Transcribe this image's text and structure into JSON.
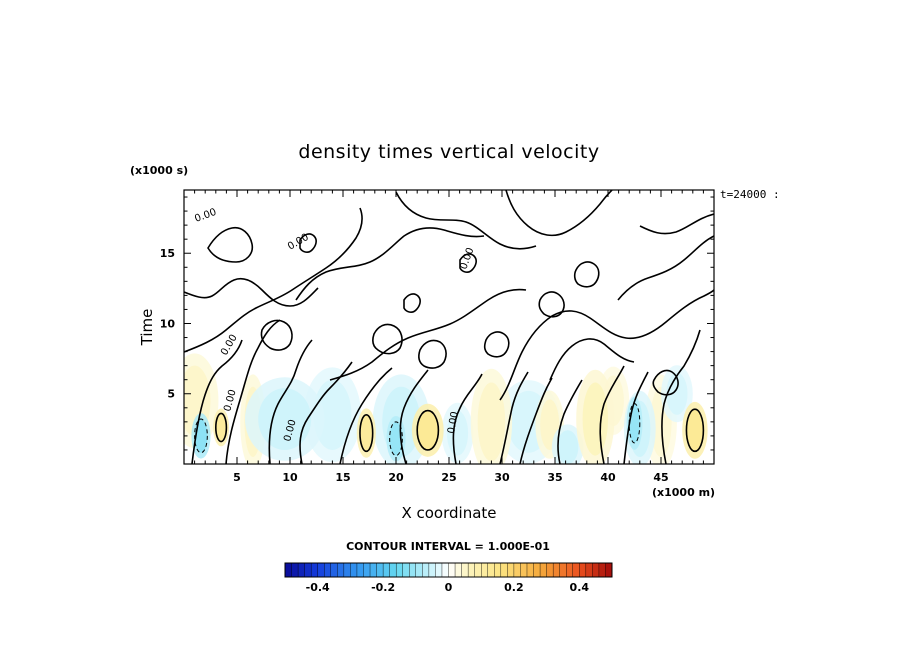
{
  "chart_data": {
    "type": "heatmap",
    "title": "density times vertical velocity",
    "xlabel": "X coordinate",
    "ylabel": "Time",
    "x_unit": "(x1000 m)",
    "y_unit": "(x1000 s)",
    "xlim": [
      0,
      50
    ],
    "ylim": [
      0,
      19.5
    ],
    "x_ticks": [
      5,
      10,
      15,
      20,
      25,
      30,
      35,
      40,
      45
    ],
    "y_ticks": [
      5,
      10,
      15
    ],
    "time_label": "t=24000 :",
    "contour_interval_text": "CONTOUR INTERVAL = 1.000E-01",
    "contour_label": "0.00",
    "colorbar": {
      "min": -0.5,
      "max": 0.5,
      "tick_values": [
        -0.4,
        -0.2,
        0,
        0.2,
        0.4
      ],
      "tick_labels": [
        "-0.4",
        "-0.2",
        "0",
        "0.2",
        "0.4"
      ]
    },
    "positive_lobes": [
      {
        "x": 3.5,
        "y": 2.6,
        "rx": 0.5,
        "ry": 1.0,
        "value": 0.12
      },
      {
        "x": 17.2,
        "y": 2.2,
        "rx": 0.6,
        "ry": 1.3,
        "value": 0.12
      },
      {
        "x": 23.0,
        "y": 2.4,
        "rx": 1.0,
        "ry": 1.4,
        "value": 0.13
      },
      {
        "x": 48.2,
        "y": 2.4,
        "rx": 0.8,
        "ry": 1.5,
        "value": 0.13
      },
      {
        "x": 6.5,
        "y": 3.0,
        "rx": 0.8,
        "ry": 2.5,
        "value": 0.05
      },
      {
        "x": 1.0,
        "y": 4.5,
        "rx": 1.5,
        "ry": 2.5,
        "value": 0.05
      },
      {
        "x": 29.0,
        "y": 3.0,
        "rx": 1.3,
        "ry": 2.8,
        "value": 0.05
      },
      {
        "x": 34.5,
        "y": 2.8,
        "rx": 0.9,
        "ry": 1.8,
        "value": 0.05
      },
      {
        "x": 38.8,
        "y": 3.2,
        "rx": 1.2,
        "ry": 2.6,
        "value": 0.06
      },
      {
        "x": 40.5,
        "y": 4.5,
        "rx": 1.0,
        "ry": 1.8,
        "value": 0.04
      },
      {
        "x": 45.0,
        "y": 3.0,
        "rx": 1.0,
        "ry": 2.5,
        "value": 0.04
      }
    ],
    "negative_lobes": [
      {
        "x": 1.6,
        "y": 2.0,
        "rx": 0.6,
        "ry": 1.2,
        "value": -0.12
      },
      {
        "x": 20.0,
        "y": 1.8,
        "rx": 0.6,
        "ry": 1.2,
        "value": -0.11
      },
      {
        "x": 42.5,
        "y": 2.9,
        "rx": 0.5,
        "ry": 1.4,
        "value": -0.11
      },
      {
        "x": 9.5,
        "y": 3.2,
        "rx": 2.5,
        "ry": 2.2,
        "value": -0.05
      },
      {
        "x": 14.0,
        "y": 3.5,
        "rx": 1.8,
        "ry": 2.5,
        "value": -0.04
      },
      {
        "x": 20.5,
        "y": 3.0,
        "rx": 1.8,
        "ry": 2.5,
        "value": -0.05
      },
      {
        "x": 25.8,
        "y": 2.2,
        "rx": 1.0,
        "ry": 1.6,
        "value": -0.04
      },
      {
        "x": 32.5,
        "y": 3.0,
        "rx": 2.0,
        "ry": 2.2,
        "value": -0.04
      },
      {
        "x": 36.2,
        "y": 1.2,
        "rx": 1.0,
        "ry": 1.2,
        "value": -0.05
      },
      {
        "x": 43.0,
        "y": 2.5,
        "rx": 1.0,
        "ry": 2.0,
        "value": -0.05
      },
      {
        "x": 46.5,
        "y": 5.0,
        "rx": 1.0,
        "ry": 1.5,
        "value": -0.04
      }
    ]
  }
}
